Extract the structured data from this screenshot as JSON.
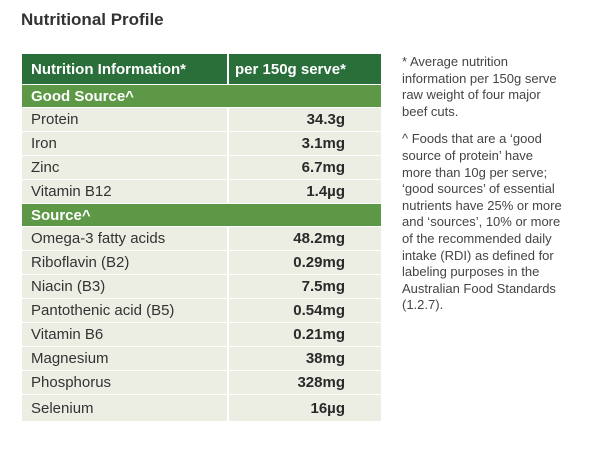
{
  "title": "Nutritional Profile",
  "table": {
    "header": {
      "col1": "Nutrition Information*",
      "col2": "per 150g serve*"
    },
    "sections": [
      {
        "label": "Good Source^",
        "rows": [
          {
            "name": "Protein",
            "value": "34.3g"
          },
          {
            "name": "Iron",
            "value": "3.1mg"
          },
          {
            "name": "Zinc",
            "value": "6.7mg"
          },
          {
            "name": "Vitamin B12",
            "value": "1.4µg"
          }
        ]
      },
      {
        "label": "Source^",
        "rows": [
          {
            "name": "Omega-3 fatty acids",
            "value": "48.2mg"
          },
          {
            "name": "Riboflavin (B2)",
            "value": "0.29mg"
          },
          {
            "name": "Niacin (B3)",
            "value": "7.5mg"
          },
          {
            "name": "Pantothenic acid (B5)",
            "value": "0.54mg"
          },
          {
            "name": "Vitamin B6",
            "value": "0.21mg"
          },
          {
            "name": "Magnesium",
            "value": "38mg"
          },
          {
            "name": "Phosphorus",
            "value": "328mg"
          },
          {
            "name": "Selenium",
            "value": "16µg"
          }
        ]
      }
    ]
  },
  "footnotes": {
    "average": "* Average nutrition information per 150g serve raw weight of four major beef cuts.",
    "source": "^ Foods that are a ‘good source of protein’ have more than 10g per serve; ‘good sources’ of essential nutrients have 25% or more and ‘sources’, 10% or more of the recommended daily intake (RDI) as defined for labeling purposes in the Australian Food Standards (1.2.7)."
  },
  "colors": {
    "header_bg": "#2a6e3a",
    "section_bg": "#5d9846",
    "row_bg": "#eceee4"
  }
}
